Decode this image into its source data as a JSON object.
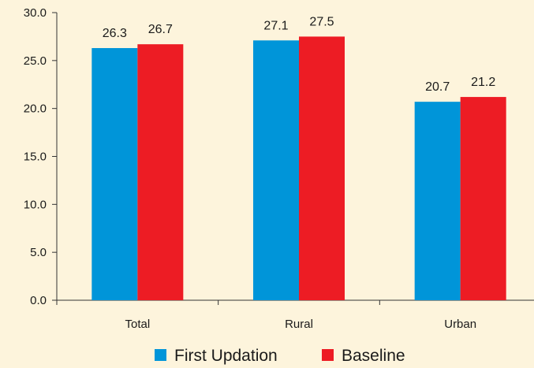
{
  "chart_data": {
    "type": "bar",
    "categories": [
      "Total",
      "Rural",
      "Urban"
    ],
    "series": [
      {
        "name": "First Updation",
        "values": [
          26.3,
          27.1,
          20.7
        ],
        "color": "#0095d9"
      },
      {
        "name": "Baseline",
        "values": [
          26.7,
          27.5,
          21.2
        ],
        "color": "#ed1c24"
      }
    ],
    "data_labels": [
      [
        "26.3",
        "27.1",
        "20.7"
      ],
      [
        "26.7",
        "27.5",
        "21.2"
      ]
    ],
    "y_ticks": [
      "0.0",
      "5.0",
      "10.0",
      "15.0",
      "20.0",
      "25.0",
      "30.0"
    ],
    "ylim": [
      0,
      30
    ],
    "title": "",
    "xlabel": "",
    "ylabel": "",
    "grid": false,
    "legend_position": "bottom-center"
  },
  "colors": {
    "background": "#fdf4dc",
    "axis": "#333333"
  }
}
